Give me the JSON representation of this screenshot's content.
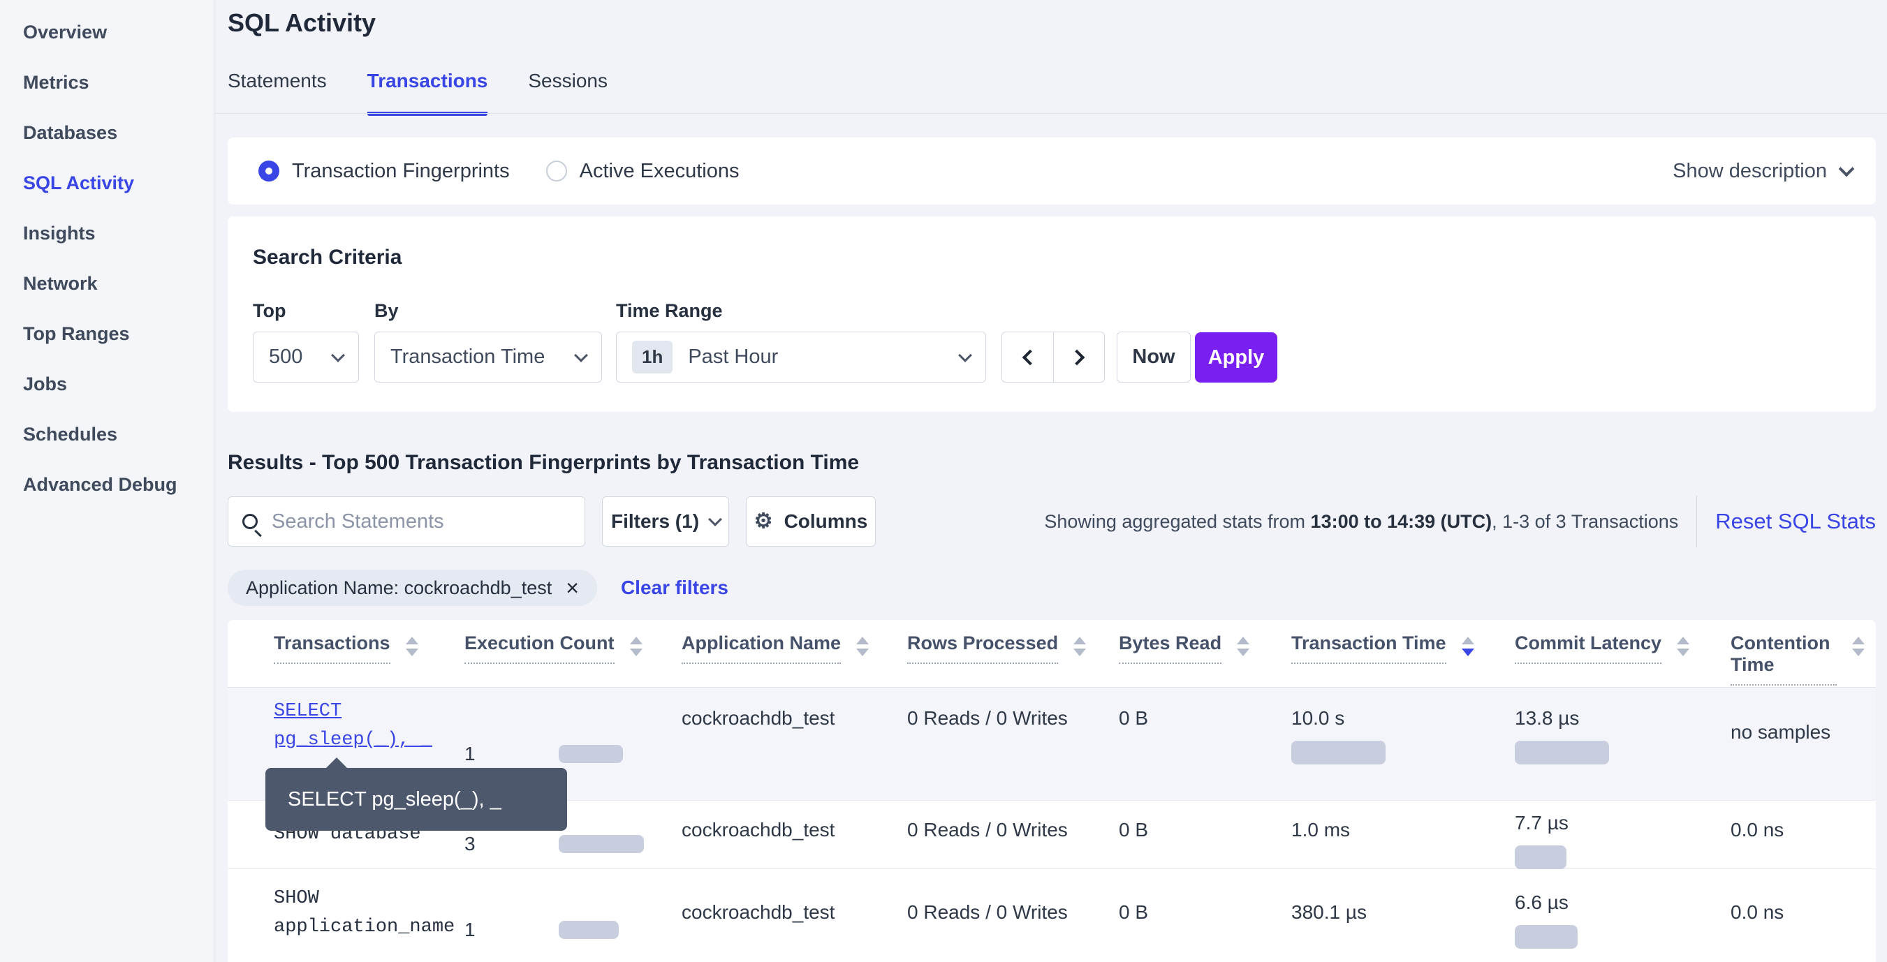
{
  "sidebar": {
    "items": [
      {
        "label": "Overview",
        "active": false
      },
      {
        "label": "Metrics",
        "active": false
      },
      {
        "label": "Databases",
        "active": false
      },
      {
        "label": "SQL Activity",
        "active": true
      },
      {
        "label": "Insights",
        "active": false
      },
      {
        "label": "Network",
        "active": false
      },
      {
        "label": "Top Ranges",
        "active": false
      },
      {
        "label": "Jobs",
        "active": false
      },
      {
        "label": "Schedules",
        "active": false
      },
      {
        "label": "Advanced Debug",
        "active": false
      }
    ]
  },
  "header": {
    "title": "SQL Activity",
    "tabs": [
      {
        "label": "Statements",
        "active": false
      },
      {
        "label": "Transactions",
        "active": true
      },
      {
        "label": "Sessions",
        "active": false
      }
    ]
  },
  "view_toggle": {
    "fingerprints_label": "Transaction Fingerprints",
    "fingerprints_selected": true,
    "active_executions_label": "Active Executions",
    "active_executions_selected": false,
    "show_description_label": "Show description"
  },
  "search_criteria": {
    "title": "Search Criteria",
    "top_label": "Top",
    "top_value": "500",
    "by_label": "By",
    "by_value": "Transaction Time",
    "time_range_label": "Time Range",
    "time_range_badge": "1h",
    "time_range_value": "Past Hour",
    "now_label": "Now",
    "apply_label": "Apply"
  },
  "results": {
    "heading": "Results - Top 500 Transaction Fingerprints by Transaction Time",
    "search_placeholder": "Search Statements",
    "filters_label": "Filters (1)",
    "columns_label": "Columns",
    "stats_prefix": "Showing aggregated stats from ",
    "stats_bold": "13:00 to 14:39 (UTC)",
    "stats_suffix": ", 1-3 of 3 Transactions",
    "reset_label": "Reset SQL Stats"
  },
  "filter_bar": {
    "chip": "Application Name: cockroachdb_test",
    "clear": "Clear filters"
  },
  "icons": {
    "close": "×",
    "gear": "⚙"
  },
  "table": {
    "columns": [
      {
        "label": "Transactions",
        "sort": "none"
      },
      {
        "label": "Execution Count",
        "sort": "none"
      },
      {
        "label": "Application Name",
        "sort": "none"
      },
      {
        "label": "Rows Processed",
        "sort": "none"
      },
      {
        "label": "Bytes Read",
        "sort": "none"
      },
      {
        "label": "Transaction Time",
        "sort": "desc"
      },
      {
        "label": "Commit Latency",
        "sort": "none"
      },
      {
        "label": "Contention Time",
        "sort": "none"
      }
    ],
    "rows": [
      {
        "query_line1": "SELECT",
        "query_line2": "pg_sleep(_), _",
        "is_link": true,
        "execution_count": "1",
        "exec_bar": 92,
        "application_name": "cockroachdb_test",
        "rows_processed": "0 Reads / 0 Writes",
        "bytes_read": "0 B",
        "transaction_time": "10.0 s",
        "transaction_time_bar": 135,
        "commit_latency": "13.8 µs",
        "commit_latency_bar": 135,
        "contention_time": "no samples"
      },
      {
        "query_line1": "SHOW database",
        "execution_count": "3",
        "exec_bar": 122,
        "application_name": "cockroachdb_test",
        "rows_processed": "0 Reads / 0 Writes",
        "bytes_read": "0 B",
        "transaction_time": "1.0 ms",
        "commit_latency": "7.7 µs",
        "commit_latency_bar": 74,
        "contention_time": "0.0 ns"
      },
      {
        "query_line1": "SHOW",
        "query_line2": "application_name",
        "execution_count": "1",
        "exec_bar": 86,
        "application_name": "cockroachdb_test",
        "rows_processed": "0 Reads / 0 Writes",
        "bytes_read": "0 B",
        "transaction_time": "380.1 µs",
        "commit_latency": "6.6 µs",
        "commit_latency_bar": 90,
        "contention_time": "0.0 ns"
      }
    ]
  },
  "tooltip": {
    "text": "SELECT pg_sleep(_), _"
  },
  "colors": {
    "accent_blue": "#3a45e5",
    "apply_purple": "#7a1ff2",
    "bar_fill": "#c9cedf",
    "tooltip_bg": "#4e586c",
    "row_highlight": "#f3f5fa"
  }
}
